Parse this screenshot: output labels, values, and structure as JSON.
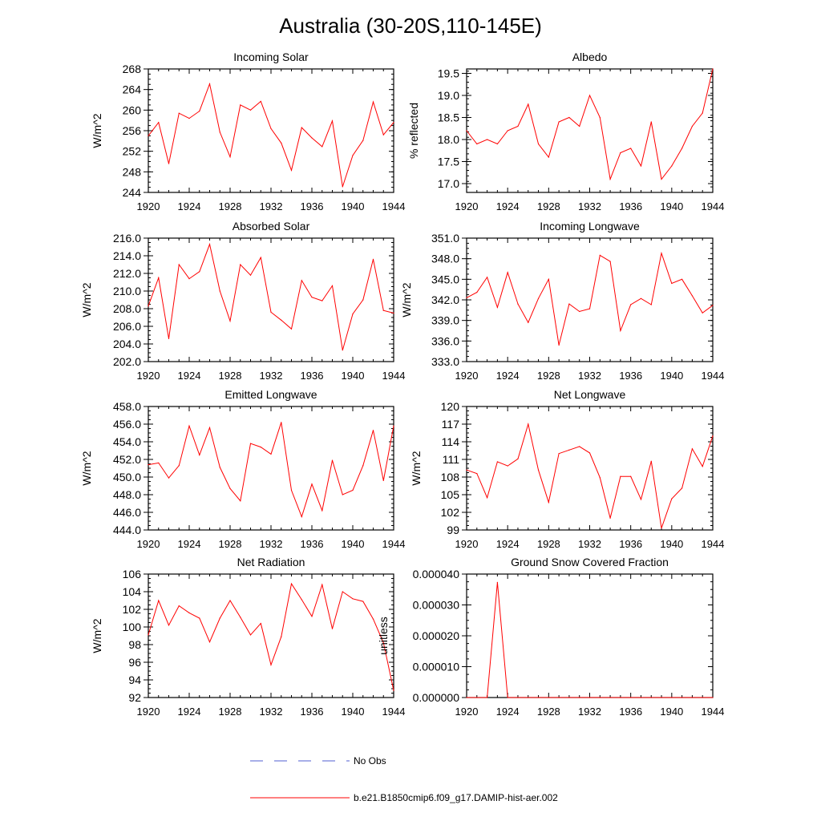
{
  "figure": {
    "title": "Australia (30-20S,110-145E)",
    "series_color": "#ff0000",
    "obs_color": "#4f5fd0",
    "legend": [
      {
        "label": "No Obs",
        "style": "dashed"
      },
      {
        "label": "b.e21.B1850cmip6.f09_g17.DAMIP-hist-aer.002",
        "style": "solid"
      }
    ]
  },
  "chart_data": [
    {
      "type": "line",
      "title": "Incoming Solar",
      "ylabel": "W/m^2",
      "xlim": [
        1920,
        1944
      ],
      "ylim": [
        244,
        268
      ],
      "xticks": [
        "1920",
        "1924",
        "1928",
        "1932",
        "1936",
        "1940",
        "1944"
      ],
      "yticks": [
        "244",
        "248",
        "252",
        "256",
        "260",
        "264",
        "268"
      ],
      "series": [
        {
          "x": [
            1920,
            1921,
            1922,
            1923,
            1924,
            1925,
            1926,
            1927,
            1928,
            1929,
            1930,
            1931,
            1932,
            1933,
            1934,
            1935,
            1936,
            1937,
            1938,
            1939,
            1940,
            1941,
            1942,
            1943,
            1944
          ],
          "values": [
            255.0,
            257.6,
            249.6,
            259.4,
            258.4,
            259.8,
            265.1,
            255.7,
            250.9,
            261.0,
            260.0,
            261.7,
            256.4,
            253.6,
            248.3,
            256.6,
            254.6,
            252.9,
            257.9,
            245.1,
            251.2,
            254.1,
            261.6,
            255.2,
            257.6
          ]
        }
      ]
    },
    {
      "type": "line",
      "title": "Albedo",
      "ylabel": "% reflected",
      "xlim": [
        1920,
        1944
      ],
      "ylim": [
        16.8,
        19.6
      ],
      "xticks": [
        "1920",
        "1924",
        "1928",
        "1932",
        "1936",
        "1940",
        "1944"
      ],
      "yticks": [
        "17.0",
        "17.5",
        "18.0",
        "18.5",
        "19.0",
        "19.5"
      ],
      "series": [
        {
          "x": [
            1920,
            1921,
            1922,
            1923,
            1924,
            1925,
            1926,
            1927,
            1928,
            1929,
            1930,
            1931,
            1932,
            1933,
            1934,
            1935,
            1936,
            1937,
            1938,
            1939,
            1940,
            1941,
            1942,
            1943,
            1944
          ],
          "values": [
            18.2,
            17.9,
            18.0,
            17.9,
            18.2,
            18.3,
            18.8,
            17.9,
            17.6,
            18.4,
            18.5,
            18.3,
            19.0,
            18.5,
            17.1,
            17.7,
            17.8,
            17.4,
            18.4,
            17.1,
            17.4,
            17.8,
            18.3,
            18.6,
            19.6
          ]
        }
      ]
    },
    {
      "type": "line",
      "title": "Absorbed Solar",
      "ylabel": "W/m^2",
      "xlim": [
        1920,
        1944
      ],
      "ylim": [
        202,
        216
      ],
      "xticks": [
        "1920",
        "1924",
        "1928",
        "1932",
        "1936",
        "1940",
        "1944"
      ],
      "yticks": [
        "202.0",
        "204.0",
        "206.0",
        "208.0",
        "210.0",
        "212.0",
        "214.0",
        "216.0"
      ],
      "series": [
        {
          "x": [
            1920,
            1921,
            1922,
            1923,
            1924,
            1925,
            1926,
            1927,
            1928,
            1929,
            1930,
            1931,
            1932,
            1933,
            1934,
            1935,
            1936,
            1937,
            1938,
            1939,
            1940,
            1941,
            1942,
            1943,
            1944
          ],
          "values": [
            208.3,
            211.5,
            204.6,
            213.0,
            211.4,
            212.2,
            215.3,
            210.0,
            206.6,
            213.0,
            211.8,
            213.8,
            207.6,
            206.7,
            205.7,
            211.2,
            209.3,
            208.9,
            210.6,
            203.3,
            207.4,
            209.0,
            213.6,
            207.8,
            207.5
          ]
        }
      ]
    },
    {
      "type": "line",
      "title": "Incoming Longwave",
      "ylabel": "W/m^2",
      "xlim": [
        1920,
        1944
      ],
      "ylim": [
        333,
        351
      ],
      "xticks": [
        "1920",
        "1924",
        "1928",
        "1932",
        "1936",
        "1940",
        "1944"
      ],
      "yticks": [
        "333.0",
        "336.0",
        "339.0",
        "342.0",
        "345.0",
        "348.0",
        "351.0"
      ],
      "series": [
        {
          "x": [
            1920,
            1921,
            1922,
            1923,
            1924,
            1925,
            1926,
            1927,
            1928,
            1929,
            1930,
            1931,
            1932,
            1933,
            1934,
            1935,
            1936,
            1937,
            1938,
            1939,
            1940,
            1941,
            1942,
            1943,
            1944
          ],
          "values": [
            342.3,
            343.1,
            345.3,
            340.9,
            346.0,
            341.4,
            338.7,
            342.2,
            345.0,
            335.4,
            341.4,
            340.3,
            340.7,
            348.5,
            347.6,
            337.5,
            341.3,
            342.2,
            341.3,
            348.8,
            344.4,
            345.0,
            342.6,
            340.1,
            341.2
          ]
        }
      ]
    },
    {
      "type": "line",
      "title": "Emitted Longwave",
      "ylabel": "W/m^2",
      "xlim": [
        1920,
        1944
      ],
      "ylim": [
        444,
        458
      ],
      "xticks": [
        "1920",
        "1924",
        "1928",
        "1932",
        "1936",
        "1940",
        "1944"
      ],
      "yticks": [
        "444.0",
        "446.0",
        "448.0",
        "450.0",
        "452.0",
        "454.0",
        "456.0",
        "458.0"
      ],
      "series": [
        {
          "x": [
            1920,
            1921,
            1922,
            1923,
            1924,
            1925,
            1926,
            1927,
            1928,
            1929,
            1930,
            1931,
            1932,
            1933,
            1934,
            1935,
            1936,
            1937,
            1938,
            1939,
            1940,
            1941,
            1942,
            1943,
            1944
          ],
          "values": [
            451.4,
            451.6,
            449.9,
            451.3,
            455.8,
            452.5,
            455.6,
            451.1,
            448.7,
            447.3,
            453.8,
            453.4,
            452.6,
            456.2,
            448.5,
            445.5,
            449.2,
            446.2,
            451.9,
            448.0,
            448.5,
            451.3,
            455.3,
            449.6,
            455.8
          ]
        }
      ]
    },
    {
      "type": "line",
      "title": "Net Longwave",
      "ylabel": "W/m^2",
      "xlim": [
        1920,
        1944
      ],
      "ylim": [
        99,
        120
      ],
      "xticks": [
        "1920",
        "1924",
        "1928",
        "1932",
        "1936",
        "1940",
        "1944"
      ],
      "yticks": [
        "99",
        "102",
        "105",
        "108",
        "111",
        "114",
        "117",
        "120"
      ],
      "series": [
        {
          "x": [
            1920,
            1921,
            1922,
            1923,
            1924,
            1925,
            1926,
            1927,
            1928,
            1929,
            1930,
            1931,
            1932,
            1933,
            1934,
            1935,
            1936,
            1937,
            1938,
            1939,
            1940,
            1941,
            1942,
            1943,
            1944
          ],
          "values": [
            109.2,
            108.6,
            104.5,
            110.6,
            109.9,
            111.1,
            117.0,
            109.2,
            103.7,
            112.0,
            112.6,
            113.2,
            112.1,
            107.9,
            101.0,
            108.1,
            108.1,
            104.2,
            110.7,
            99.3,
            104.3,
            106.1,
            112.8,
            109.8,
            115.0
          ]
        }
      ]
    },
    {
      "type": "line",
      "title": "Net Radiation",
      "ylabel": "W/m^2",
      "xlim": [
        1920,
        1944
      ],
      "ylim": [
        92,
        106
      ],
      "xticks": [
        "1920",
        "1924",
        "1928",
        "1932",
        "1936",
        "1940",
        "1944"
      ],
      "yticks": [
        "92",
        "94",
        "96",
        "98",
        "100",
        "102",
        "104",
        "106"
      ],
      "series": [
        {
          "x": [
            1920,
            1921,
            1922,
            1923,
            1924,
            1925,
            1926,
            1927,
            1928,
            1929,
            1930,
            1931,
            1932,
            1933,
            1934,
            1935,
            1936,
            1937,
            1938,
            1939,
            1940,
            1941,
            1942,
            1943,
            1944
          ],
          "values": [
            99.1,
            103.0,
            100.2,
            102.4,
            101.6,
            101.0,
            98.3,
            101.0,
            103.0,
            101.1,
            99.1,
            100.4,
            95.7,
            98.9,
            104.9,
            103.1,
            101.2,
            104.8,
            99.8,
            104.0,
            103.2,
            102.9,
            100.9,
            98.2,
            92.8
          ]
        }
      ]
    },
    {
      "type": "line",
      "title": "Ground Snow Covered Fraction",
      "ylabel": "unitless",
      "xlim": [
        1920,
        1944
      ],
      "ylim": [
        0,
        4e-05
      ],
      "xticks": [
        "1920",
        "1924",
        "1928",
        "1932",
        "1936",
        "1940",
        "1944"
      ],
      "yticks": [
        "0.000000",
        "0.000010",
        "0.000020",
        "0.000030",
        "0.000040"
      ],
      "series": [
        {
          "x": [
            1920,
            1921,
            1922,
            1923,
            1924,
            1925,
            1926,
            1927,
            1928,
            1929,
            1930,
            1931,
            1932,
            1933,
            1934,
            1935,
            1936,
            1937,
            1938,
            1939,
            1940,
            1941,
            1942,
            1943,
            1944
          ],
          "values": [
            0,
            0,
            0,
            3.73e-05,
            0,
            0,
            0,
            0,
            0,
            0,
            0,
            0,
            0,
            0,
            0,
            0,
            0,
            0,
            0,
            0,
            0,
            0,
            0,
            0,
            0
          ]
        }
      ]
    }
  ]
}
